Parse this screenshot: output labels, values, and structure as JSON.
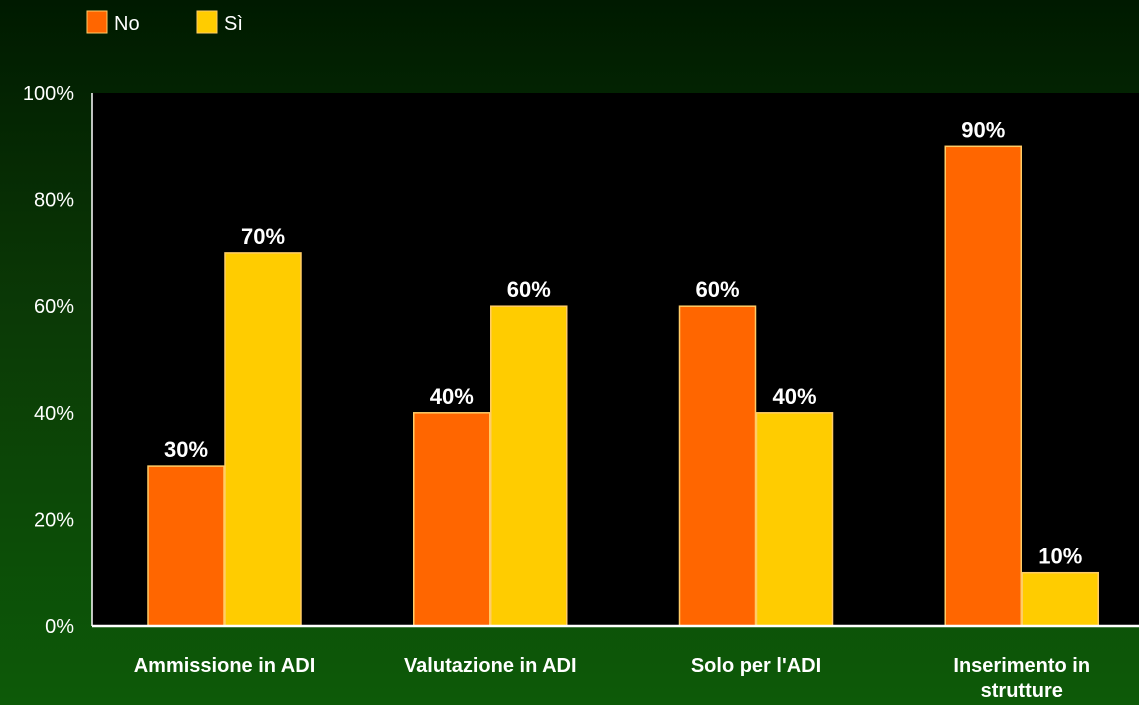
{
  "chart_data": {
    "type": "bar",
    "categories": [
      "Ammissione in ADI",
      "Valutazione in ADI",
      "Solo per l'ADI",
      "Inserimento in strutture"
    ],
    "category_lines": [
      [
        "Ammissione in ADI"
      ],
      [
        "Valutazione in ADI"
      ],
      [
        "Solo per l'ADI"
      ],
      [
        "Inserimento in",
        "strutture"
      ]
    ],
    "series": [
      {
        "name": "No",
        "values": [
          30,
          40,
          60,
          90
        ],
        "labels": [
          "30%",
          "40%",
          "60%",
          "90%"
        ],
        "color": "#ff6600"
      },
      {
        "name": "Sì",
        "values": [
          70,
          60,
          40,
          10
        ],
        "labels": [
          "70%",
          "60%",
          "40%",
          "10%"
        ],
        "color": "#ffcc00"
      }
    ],
    "ylim": [
      0,
      100
    ],
    "yticks": [
      0,
      20,
      40,
      60,
      80,
      100
    ],
    "ytick_labels": [
      "0%",
      "20%",
      "40%",
      "60%",
      "80%",
      "100%"
    ],
    "legend_position": "top-left",
    "grid": false,
    "plot_background": "#000000",
    "bar_border_color": "#ffcc66"
  }
}
